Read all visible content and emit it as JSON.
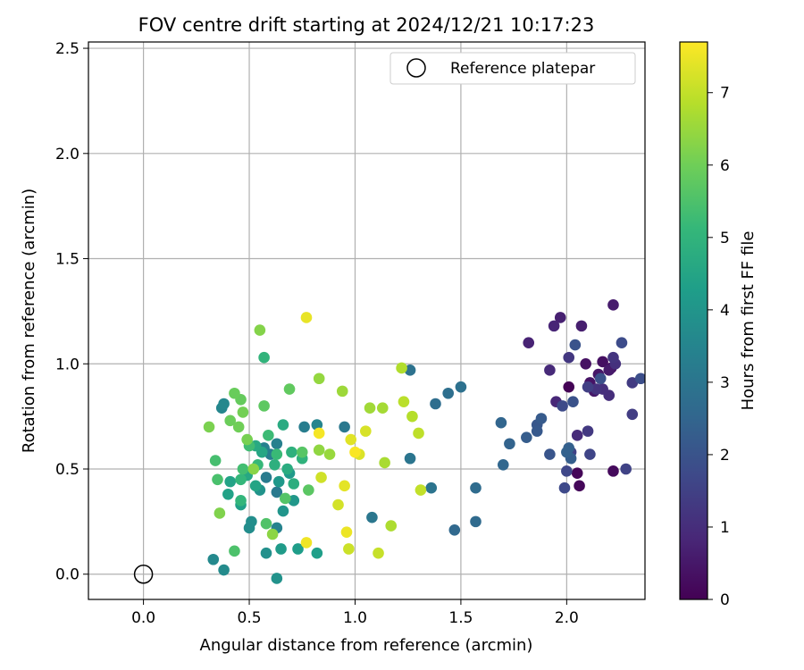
{
  "chart_data": {
    "type": "scatter",
    "title": "FOV centre drift starting at 2024/12/21 10:17:23",
    "xlabel": "Angular distance from reference (arcmin)",
    "ylabel": "Rotation from reference (arcmin)",
    "xlim": [
      -0.26,
      2.37
    ],
    "ylim": [
      -0.12,
      2.53
    ],
    "xticks": [
      "0.0",
      "0.5",
      "1.0",
      "1.5",
      "2.0"
    ],
    "yticks": [
      "0.0",
      "0.5",
      "1.0",
      "1.5",
      "2.0",
      "2.5"
    ],
    "grid": true,
    "legend": {
      "position": "top-right",
      "entries": [
        "Reference platepar"
      ]
    },
    "colorbar": {
      "label": "Hours from first FF file",
      "range": [
        0,
        7.7
      ],
      "ticks": [
        "0",
        "1",
        "2",
        "3",
        "4",
        "5",
        "6",
        "7"
      ],
      "colormap": "viridis"
    },
    "reference": {
      "x": 0.0,
      "y": 0.0
    },
    "points": [
      [
        2.01,
        0.89,
        0.05
      ],
      [
        2.05,
        0.48,
        0.1
      ],
      [
        2.06,
        0.42,
        0.15
      ],
      [
        2.22,
        0.49,
        0.2
      ],
      [
        2.21,
        0.98,
        0.25
      ],
      [
        2.17,
        1.01,
        0.3
      ],
      [
        2.09,
        1.0,
        0.35
      ],
      [
        2.11,
        0.91,
        0.4
      ],
      [
        2.15,
        0.95,
        0.45
      ],
      [
        2.13,
        0.87,
        0.5
      ],
      [
        2.2,
        0.97,
        0.55
      ],
      [
        2.22,
        1.28,
        0.6
      ],
      [
        2.07,
        1.18,
        0.65
      ],
      [
        1.97,
        1.22,
        0.7
      ],
      [
        1.82,
        1.1,
        0.75
      ],
      [
        1.94,
        1.18,
        0.8
      ],
      [
        1.95,
        0.82,
        0.85
      ],
      [
        1.92,
        0.97,
        0.9
      ],
      [
        2.05,
        0.66,
        0.95
      ],
      [
        2.2,
        0.85,
        1.0
      ],
      [
        2.17,
        0.88,
        1.05
      ],
      [
        2.23,
        1.0,
        1.1
      ],
      [
        2.14,
        0.88,
        1.15
      ],
      [
        2.22,
        1.03,
        1.2
      ],
      [
        2.01,
        1.03,
        1.25
      ],
      [
        2.1,
        0.68,
        1.3
      ],
      [
        2.31,
        0.91,
        1.35
      ],
      [
        2.31,
        0.76,
        1.4
      ],
      [
        2.1,
        0.89,
        1.45
      ],
      [
        2.02,
        0.58,
        1.5
      ],
      [
        2.28,
        0.5,
        1.55
      ],
      [
        2.11,
        0.57,
        1.6
      ],
      [
        2.0,
        0.49,
        1.65
      ],
      [
        1.99,
        0.41,
        1.7
      ],
      [
        1.98,
        0.8,
        1.75
      ],
      [
        2.26,
        1.1,
        1.8
      ],
      [
        2.35,
        0.93,
        1.85
      ],
      [
        2.16,
        0.93,
        1.9
      ],
      [
        2.03,
        0.82,
        1.95
      ],
      [
        2.04,
        1.09,
        2.0
      ],
      [
        1.92,
        0.57,
        2.05
      ],
      [
        1.86,
        0.71,
        2.1
      ],
      [
        1.86,
        0.68,
        2.15
      ],
      [
        1.88,
        0.74,
        2.2
      ],
      [
        1.81,
        0.65,
        2.25
      ],
      [
        2.02,
        0.55,
        2.3
      ],
      [
        2.01,
        0.6,
        2.35
      ],
      [
        2.0,
        0.58,
        2.4
      ],
      [
        1.73,
        0.62,
        2.45
      ],
      [
        1.69,
        0.72,
        2.5
      ],
      [
        1.7,
        0.52,
        2.55
      ],
      [
        1.47,
        0.21,
        2.6
      ],
      [
        1.57,
        0.25,
        2.65
      ],
      [
        1.57,
        0.41,
        2.7
      ],
      [
        1.38,
        0.81,
        2.75
      ],
      [
        1.44,
        0.86,
        2.8
      ],
      [
        1.5,
        0.89,
        2.85
      ],
      [
        1.26,
        0.97,
        2.9
      ],
      [
        1.36,
        0.41,
        2.95
      ],
      [
        1.26,
        0.55,
        3.0
      ],
      [
        1.08,
        0.27,
        3.05
      ],
      [
        0.95,
        0.7,
        3.1
      ],
      [
        0.63,
        0.39,
        3.15
      ],
      [
        0.58,
        0.46,
        3.2
      ],
      [
        0.76,
        0.7,
        3.25
      ],
      [
        0.6,
        0.57,
        3.3
      ],
      [
        0.63,
        0.62,
        3.35
      ],
      [
        0.57,
        0.6,
        3.4
      ],
      [
        0.63,
        0.22,
        3.45
      ],
      [
        0.82,
        0.71,
        3.5
      ],
      [
        0.37,
        0.79,
        3.55
      ],
      [
        0.38,
        0.81,
        3.6
      ],
      [
        0.33,
        0.07,
        3.65
      ],
      [
        0.38,
        0.02,
        3.7
      ],
      [
        0.5,
        0.22,
        3.75
      ],
      [
        0.51,
        0.25,
        3.8
      ],
      [
        0.58,
        0.1,
        3.85
      ],
      [
        0.63,
        -0.02,
        3.9
      ],
      [
        0.55,
        0.4,
        3.95
      ],
      [
        0.66,
        0.3,
        4.0
      ],
      [
        0.71,
        0.35,
        4.05
      ],
      [
        0.64,
        0.44,
        4.1
      ],
      [
        0.69,
        0.48,
        4.15
      ],
      [
        0.65,
        0.12,
        4.2
      ],
      [
        0.73,
        0.12,
        4.25
      ],
      [
        0.82,
        0.1,
        4.3
      ],
      [
        0.46,
        0.33,
        4.35
      ],
      [
        0.4,
        0.38,
        4.4
      ],
      [
        0.41,
        0.44,
        4.45
      ],
      [
        0.53,
        0.42,
        4.5
      ],
      [
        0.56,
        0.58,
        4.55
      ],
      [
        0.49,
        0.47,
        4.6
      ],
      [
        0.53,
        0.61,
        4.65
      ],
      [
        0.66,
        0.71,
        4.7
      ],
      [
        0.68,
        0.5,
        4.75
      ],
      [
        0.71,
        0.43,
        4.8
      ],
      [
        0.62,
        0.52,
        4.85
      ],
      [
        0.7,
        0.58,
        4.9
      ],
      [
        0.75,
        0.55,
        4.95
      ],
      [
        0.57,
        1.03,
        5.0
      ],
      [
        0.46,
        0.35,
        5.05
      ],
      [
        0.46,
        0.45,
        5.1
      ],
      [
        0.54,
        0.52,
        5.15
      ],
      [
        0.63,
        0.57,
        5.2
      ],
      [
        0.59,
        0.66,
        5.25
      ],
      [
        0.5,
        0.61,
        5.3
      ],
      [
        0.47,
        0.5,
        5.35
      ],
      [
        0.34,
        0.54,
        5.4
      ],
      [
        0.35,
        0.45,
        5.45
      ],
      [
        0.43,
        0.11,
        5.5
      ],
      [
        0.58,
        0.24,
        5.55
      ],
      [
        0.67,
        0.36,
        5.6
      ],
      [
        0.75,
        0.58,
        5.65
      ],
      [
        0.78,
        0.4,
        5.7
      ],
      [
        0.57,
        0.8,
        5.75
      ],
      [
        0.69,
        0.88,
        5.8
      ],
      [
        0.46,
        0.83,
        5.85
      ],
      [
        0.43,
        0.86,
        5.9
      ],
      [
        0.41,
        0.73,
        5.95
      ],
      [
        0.45,
        0.7,
        6.0
      ],
      [
        0.47,
        0.77,
        6.05
      ],
      [
        0.49,
        0.64,
        6.1
      ],
      [
        0.31,
        0.7,
        6.15
      ],
      [
        0.36,
        0.29,
        6.2
      ],
      [
        0.55,
        1.16,
        6.25
      ],
      [
        0.52,
        0.5,
        6.3
      ],
      [
        0.61,
        0.19,
        6.35
      ],
      [
        0.83,
        0.59,
        6.4
      ],
      [
        0.83,
        0.93,
        6.45
      ],
      [
        0.88,
        0.57,
        6.5
      ],
      [
        0.94,
        0.87,
        6.55
      ],
      [
        1.07,
        0.79,
        6.6
      ],
      [
        1.13,
        0.79,
        6.65
      ],
      [
        1.14,
        0.53,
        6.7
      ],
      [
        1.17,
        0.23,
        6.75
      ],
      [
        1.22,
        0.98,
        6.8
      ],
      [
        1.27,
        0.75,
        6.85
      ],
      [
        1.23,
        0.82,
        6.9
      ],
      [
        1.3,
        0.67,
        6.95
      ],
      [
        1.31,
        0.4,
        7.0
      ],
      [
        1.11,
        0.1,
        7.05
      ],
      [
        0.97,
        0.12,
        7.1
      ],
      [
        0.84,
        0.46,
        7.15
      ],
      [
        0.92,
        0.33,
        7.2
      ],
      [
        1.05,
        0.68,
        7.25
      ],
      [
        1.02,
        0.57,
        7.3
      ],
      [
        0.98,
        0.64,
        7.35
      ],
      [
        0.95,
        0.42,
        7.4
      ],
      [
        0.77,
        1.22,
        7.45
      ],
      [
        0.96,
        0.2,
        7.5
      ],
      [
        0.77,
        0.15,
        7.55
      ],
      [
        0.83,
        0.67,
        7.6
      ],
      [
        1.0,
        0.58,
        7.65
      ]
    ]
  }
}
